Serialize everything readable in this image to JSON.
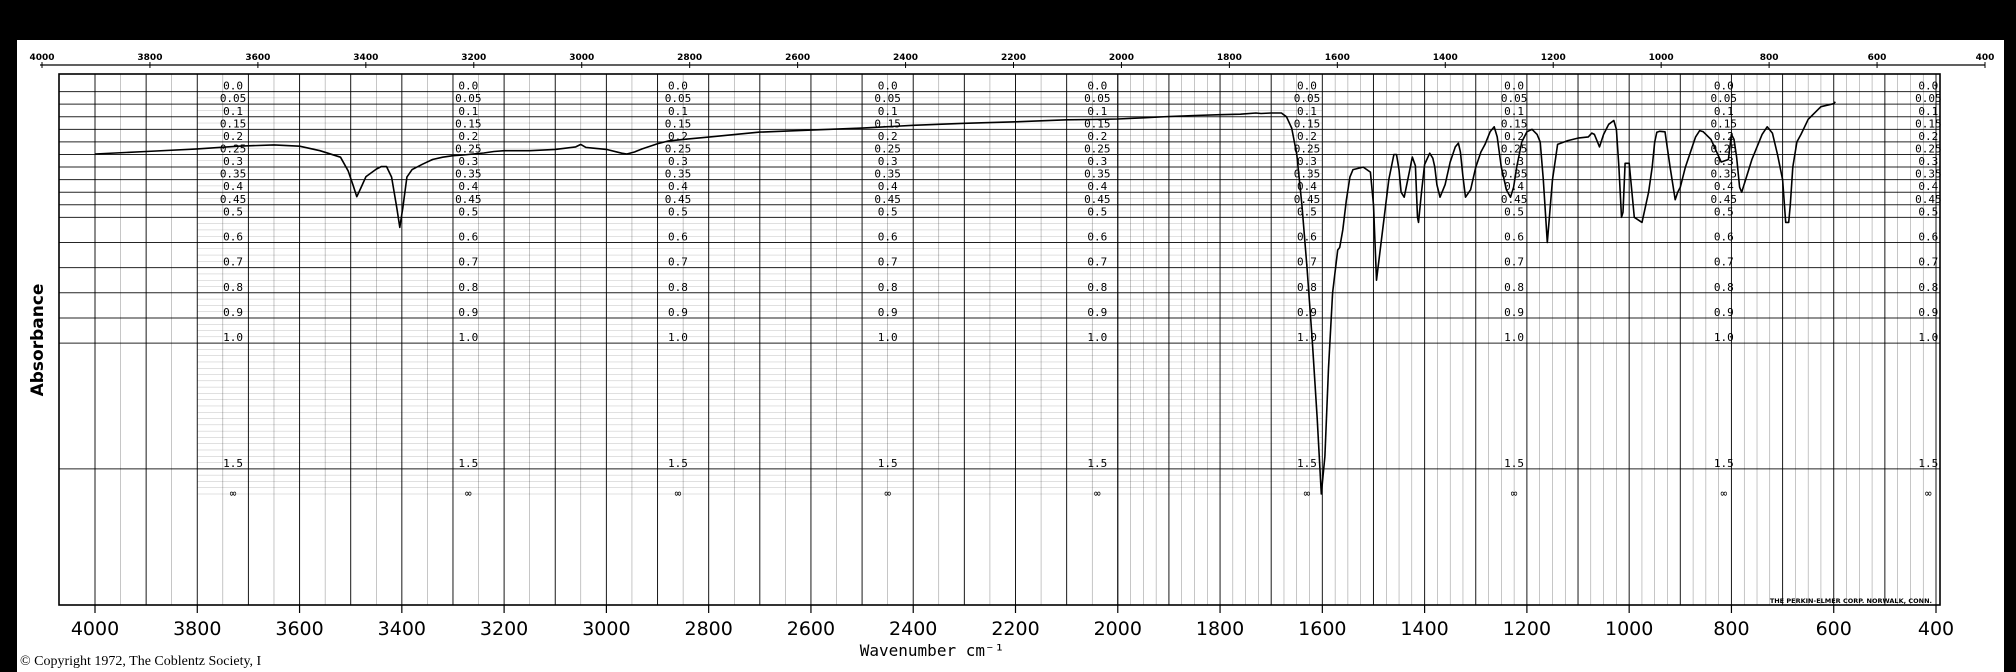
{
  "copyright": "© Copyright 1972, The Coblentz Society, I",
  "chart_data": {
    "type": "line",
    "ylabel": "Absorbance",
    "xlabel": "Wavenumber cm⁻¹",
    "xlim": [
      4000,
      400
    ],
    "x_ticks_bottom": [
      "4000",
      "3800",
      "3600",
      "3400",
      "3200",
      "3000",
      "2800",
      "2600",
      "2400",
      "2200",
      "2000",
      "1800",
      "1600",
      "1400",
      "1200",
      "1000",
      "800",
      "600",
      "400"
    ],
    "x_ticks_top": [
      "4000",
      "3800",
      "3600",
      "3400",
      "3200",
      "3000",
      "2800",
      "2600",
      "2400",
      "2200",
      "2000",
      "1800",
      "1600",
      "1400",
      "1200",
      "1000",
      "800",
      "600",
      "400"
    ],
    "y_scale_labels": [
      "0.0",
      "0.05",
      "0.1",
      "0.15",
      "0.2",
      "0.25",
      "0.3",
      "0.35",
      "0.4",
      "0.45",
      "0.5",
      "0.6",
      "0.7",
      "0.8",
      "0.9",
      "1.0",
      "1.5",
      "∞"
    ],
    "maker_note": "THE PERKIN-ELMER CORP. NORWALK, CONN.",
    "grid": true,
    "series": [
      {
        "color": "#000000",
        "x": [
          4000,
          3900,
          3800,
          3720,
          3650,
          3600,
          3560,
          3520,
          3505,
          3495,
          3488,
          3480,
          3470,
          3450,
          3440,
          3430,
          3420,
          3410,
          3404,
          3398,
          3390,
          3380,
          3360,
          3340,
          3320,
          3300,
          3280,
          3260,
          3240,
          3220,
          3200,
          3150,
          3100,
          3060,
          3050,
          3040,
          3000,
          2970,
          2960,
          2945,
          2930,
          2900,
          2880,
          2850,
          2800,
          2750,
          2700,
          2600,
          2500,
          2400,
          2300,
          2200,
          2150,
          2100,
          2050,
          2000,
          1950,
          1900,
          1850,
          1800,
          1760,
          1730,
          1720,
          1700,
          1680,
          1670,
          1660,
          1650,
          1640,
          1630,
          1620,
          1610,
          1602,
          1595,
          1588,
          1580,
          1570,
          1566,
          1560,
          1553,
          1546,
          1540,
          1520,
          1506,
          1500,
          1494,
          1485,
          1470,
          1460,
          1455,
          1450,
          1446,
          1440,
          1430,
          1424,
          1418,
          1414,
          1412,
          1406,
          1400,
          1390,
          1384,
          1380,
          1376,
          1370,
          1360,
          1350,
          1340,
          1334,
          1330,
          1325,
          1320,
          1310,
          1300,
          1290,
          1282,
          1272,
          1264,
          1258,
          1250,
          1240,
          1232,
          1226,
          1220,
          1210,
          1200,
          1190,
          1180,
          1174,
          1168,
          1160,
          1150,
          1140,
          1120,
          1100,
          1080,
          1073,
          1068,
          1062,
          1058,
          1050,
          1040,
          1030,
          1025,
          1020,
          1015,
          1012,
          1008,
          1000,
          990,
          975,
          962,
          955,
          950,
          946,
          940,
          930,
          920,
          910,
          905,
          900,
          890,
          870,
          862,
          855,
          840,
          820,
          806,
          800,
          795,
          790,
          784,
          780,
          760,
          740,
          730,
          720,
          710,
          700,
          694,
          688,
          685,
          680,
          672,
          664,
          650,
          625,
          600,
          597
        ],
        "y": [
          0.248,
          0.238,
          0.228,
          0.217,
          0.212,
          0.217,
          0.235,
          0.261,
          0.315,
          0.375,
          0.418,
          0.383,
          0.338,
          0.308,
          0.298,
          0.298,
          0.34,
          0.46,
          0.54,
          0.46,
          0.34,
          0.31,
          0.289,
          0.27,
          0.261,
          0.255,
          0.252,
          0.248,
          0.244,
          0.238,
          0.235,
          0.235,
          0.23,
          0.22,
          0.21,
          0.222,
          0.23,
          0.245,
          0.248,
          0.24,
          0.228,
          0.207,
          0.197,
          0.19,
          0.181,
          0.171,
          0.161,
          0.153,
          0.145,
          0.134,
          0.126,
          0.12,
          0.116,
          0.112,
          0.111,
          0.109,
          0.104,
          0.099,
          0.095,
          0.092,
          0.09,
          0.085,
          0.087,
          0.085,
          0.085,
          0.1,
          0.145,
          0.25,
          0.45,
          0.7,
          0.98,
          1.3,
          1.6,
          1.45,
          1.1,
          0.8,
          0.63,
          0.62,
          0.55,
          0.43,
          0.34,
          0.31,
          0.3,
          0.32,
          0.45,
          0.75,
          0.6,
          0.35,
          0.25,
          0.25,
          0.31,
          0.4,
          0.42,
          0.32,
          0.26,
          0.295,
          0.5,
          0.52,
          0.4,
          0.29,
          0.245,
          0.265,
          0.3,
          0.37,
          0.42,
          0.37,
          0.28,
          0.22,
          0.205,
          0.24,
          0.34,
          0.42,
          0.39,
          0.3,
          0.24,
          0.21,
          0.16,
          0.14,
          0.18,
          0.3,
          0.39,
          0.42,
          0.38,
          0.3,
          0.2,
          0.16,
          0.15,
          0.17,
          0.2,
          0.35,
          0.6,
          0.35,
          0.21,
          0.195,
          0.185,
          0.18,
          0.165,
          0.17,
          0.2,
          0.22,
          0.17,
          0.13,
          0.115,
          0.15,
          0.3,
          0.5,
          0.48,
          0.285,
          0.285,
          0.5,
          0.52,
          0.4,
          0.3,
          0.2,
          0.162,
          0.158,
          0.16,
          0.3,
          0.43,
          0.4,
          0.38,
          0.3,
          0.18,
          0.155,
          0.16,
          0.19,
          0.28,
          0.27,
          0.17,
          0.19,
          0.26,
          0.38,
          0.4,
          0.27,
          0.17,
          0.14,
          0.165,
          0.25,
          0.35,
          0.52,
          0.52,
          0.45,
          0.3,
          0.2,
          0.17,
          0.11,
          0.06,
          0.048,
          0.04
        ]
      }
    ]
  }
}
